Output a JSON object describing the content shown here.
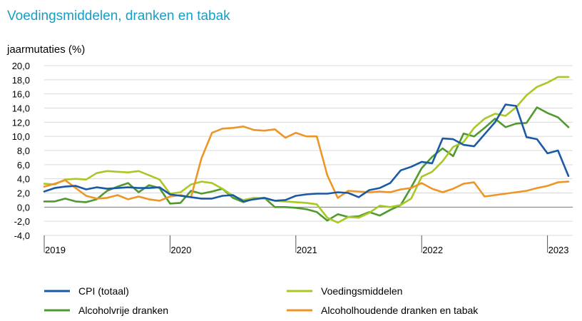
{
  "chart_data": {
    "type": "line",
    "title": "Voedingsmiddelen, dranken en tabak",
    "ylabel": "jaarmutaties (%)",
    "xlabel": "",
    "ylim": [
      -4,
      20
    ],
    "yticks": [
      -4,
      -2,
      0,
      2,
      4,
      6,
      8,
      10,
      12,
      14,
      16,
      18,
      20
    ],
    "ytick_labels": [
      "-4,0",
      "-2,0",
      "0,0",
      "2,0",
      "4,0",
      "6,0",
      "8,0",
      "10,0",
      "12,0",
      "14,0",
      "16,0",
      "18,0",
      "20,0"
    ],
    "xlim": [
      0,
      50
    ],
    "xticks": [
      {
        "index": 0,
        "label": "2019"
      },
      {
        "index": 12,
        "label": "2020"
      },
      {
        "index": 24,
        "label": "2021"
      },
      {
        "index": 36,
        "label": "2022"
      },
      {
        "index": 48,
        "label": "2023"
      }
    ],
    "grid": true,
    "legend_position": "bottom",
    "x": [
      "2019-01",
      "2019-02",
      "2019-03",
      "2019-04",
      "2019-05",
      "2019-06",
      "2019-07",
      "2019-08",
      "2019-09",
      "2019-10",
      "2019-11",
      "2019-12",
      "2020-01",
      "2020-02",
      "2020-03",
      "2020-04",
      "2020-05",
      "2020-06",
      "2020-07",
      "2020-08",
      "2020-09",
      "2020-10",
      "2020-11",
      "2020-12",
      "2021-01",
      "2021-02",
      "2021-03",
      "2021-04",
      "2021-05",
      "2021-06",
      "2021-07",
      "2021-08",
      "2021-09",
      "2021-10",
      "2021-11",
      "2021-12",
      "2022-01",
      "2022-02",
      "2022-03",
      "2022-04",
      "2022-05",
      "2022-06",
      "2022-07",
      "2022-08",
      "2022-09",
      "2022-10",
      "2022-11",
      "2022-12",
      "2023-01",
      "2023-02",
      "2023-03"
    ],
    "series": [
      {
        "name": "CPI (totaal)",
        "color": "#1a5aa5",
        "values": [
          2.2,
          2.7,
          2.9,
          3.0,
          2.5,
          2.8,
          2.6,
          2.7,
          2.8,
          2.7,
          2.7,
          2.8,
          1.8,
          1.6,
          1.4,
          1.2,
          1.2,
          1.6,
          1.7,
          0.8,
          1.1,
          1.3,
          0.9,
          1.0,
          1.6,
          1.8,
          1.9,
          1.9,
          2.1,
          2.0,
          1.4,
          2.4,
          2.7,
          3.4,
          5.2,
          5.7,
          6.4,
          6.2,
          9.7,
          9.6,
          8.8,
          8.6,
          10.3,
          12.0,
          14.5,
          14.3,
          9.9,
          9.6,
          7.6,
          8.0,
          4.4
        ]
      },
      {
        "name": "Voedingsmiddelen",
        "color": "#a8c825",
        "values": [
          3.3,
          3.2,
          3.9,
          4.0,
          3.9,
          4.8,
          5.1,
          5.0,
          4.9,
          5.1,
          4.5,
          3.9,
          1.9,
          2.1,
          3.2,
          3.6,
          3.4,
          2.6,
          1.6,
          1.0,
          1.3,
          1.2,
          0.9,
          0.8,
          0.7,
          0.6,
          0.4,
          -1.5,
          -2.2,
          -1.4,
          -1.5,
          -0.8,
          0.2,
          0.0,
          0.3,
          1.2,
          4.3,
          5.0,
          6.5,
          8.5,
          9.2,
          11.2,
          12.5,
          13.2,
          12.9,
          14.1,
          15.8,
          17.0,
          17.6,
          18.4,
          18.4
        ]
      },
      {
        "name": "Alcoholvrije dranken",
        "color": "#4f9a2e",
        "values": [
          0.8,
          0.8,
          1.2,
          0.8,
          0.7,
          1.1,
          2.3,
          2.9,
          3.4,
          2.1,
          3.1,
          2.7,
          0.5,
          0.6,
          2.3,
          1.9,
          2.2,
          2.6,
          1.3,
          0.7,
          1.2,
          1.3,
          0.0,
          0.0,
          -0.1,
          -0.3,
          -0.7,
          -1.9,
          -1.0,
          -1.4,
          -1.3,
          -0.7,
          -1.2,
          -0.4,
          0.3,
          2.8,
          5.5,
          7.1,
          8.3,
          7.2,
          10.4,
          10.0,
          11.2,
          12.5,
          11.3,
          11.8,
          11.9,
          14.1,
          13.3,
          12.7,
          11.3
        ]
      },
      {
        "name": "Alcoholhoudende dranken en tabak",
        "color": "#ee9527",
        "values": [
          2.9,
          3.3,
          3.8,
          2.7,
          1.6,
          1.2,
          1.3,
          1.7,
          1.1,
          1.5,
          1.1,
          0.9,
          1.5,
          1.7,
          1.4,
          6.9,
          10.5,
          11.1,
          11.2,
          11.4,
          10.9,
          10.8,
          11.0,
          9.8,
          10.5,
          10.0,
          10.0,
          4.5,
          1.3,
          2.3,
          2.2,
          2.1,
          2.2,
          2.1,
          2.5,
          2.7,
          3.4,
          2.6,
          2.1,
          2.6,
          3.3,
          3.5,
          1.5,
          1.7,
          1.9,
          2.1,
          2.3,
          2.7,
          3.0,
          3.5,
          3.6
        ]
      }
    ]
  }
}
